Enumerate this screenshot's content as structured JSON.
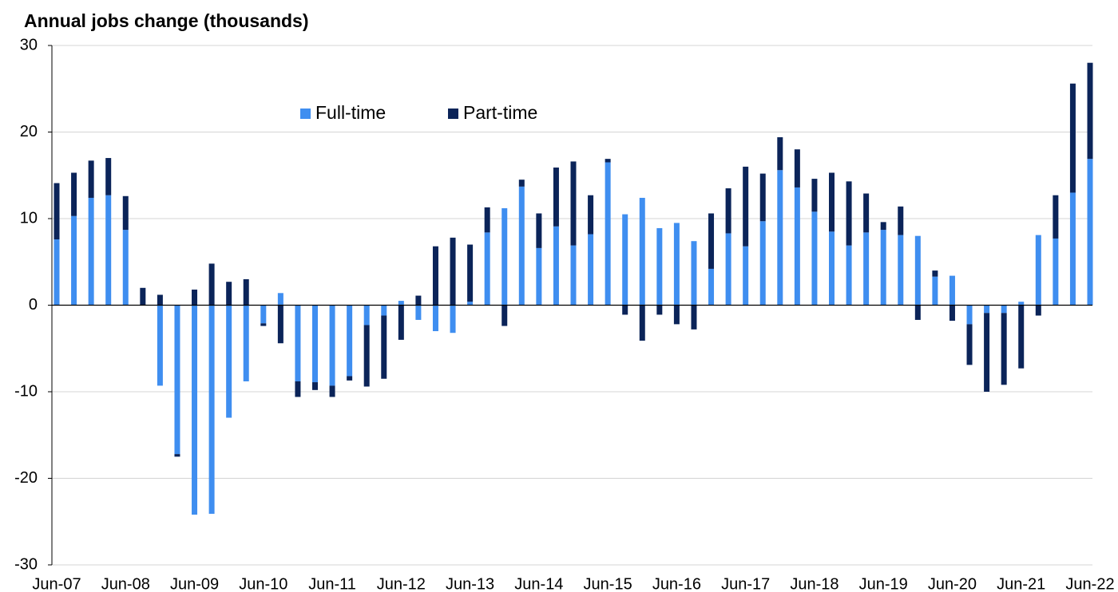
{
  "chart_data": {
    "type": "stacked_bar",
    "title": "Annual jobs change (thousands)",
    "categories": [
      "Jun-07",
      null,
      null,
      null,
      "Jun-08",
      null,
      null,
      null,
      "Jun-09",
      null,
      null,
      null,
      "Jun-10",
      null,
      null,
      null,
      "Jun-11",
      null,
      null,
      null,
      "Jun-12",
      null,
      null,
      null,
      "Jun-13",
      null,
      null,
      null,
      "Jun-14",
      null,
      null,
      null,
      "Jun-15",
      null,
      null,
      null,
      "Jun-16",
      null,
      null,
      null,
      "Jun-17",
      null,
      null,
      null,
      "Jun-18",
      null,
      null,
      null,
      "Jun-19",
      null,
      null,
      null,
      "Jun-20",
      null,
      null,
      null,
      "Jun-21",
      null,
      null,
      null,
      "Jun-22"
    ],
    "series": [
      {
        "name": "Full-time",
        "color": "#3f8ef0",
        "values": [
          7.6,
          10.3,
          12.4,
          12.7,
          8.7,
          0,
          -9.3,
          -17.2,
          -24.2,
          -24.1,
          -13.0,
          -8.8,
          -2.1,
          1.4,
          -8.8,
          -8.9,
          -9.3,
          -8.2,
          -2.3,
          -1.2,
          0.5,
          -1.7,
          -3.0,
          -3.2,
          0.4,
          8.4,
          11.2,
          13.7,
          6.6,
          9.1,
          6.9,
          8.2,
          16.5,
          10.5,
          12.4,
          8.9,
          9.5,
          7.4,
          4.2,
          8.3,
          6.8,
          9.7,
          15.6,
          13.6,
          10.8,
          8.5,
          6.9,
          8.4,
          8.7,
          8.1,
          8.0,
          3.3,
          3.4,
          -2.2,
          -0.9,
          -0.9,
          0.4,
          8.1,
          7.7,
          13.0,
          16.9
        ]
      },
      {
        "name": "Part-time",
        "color": "#0b2459",
        "values": [
          6.5,
          5.0,
          4.3,
          4.3,
          3.9,
          2.0,
          1.2,
          -0.3,
          1.8,
          4.8,
          2.7,
          3.0,
          -0.3,
          -4.4,
          -1.8,
          -0.9,
          -1.3,
          -0.5,
          -7.1,
          -7.3,
          -4.0,
          1.1,
          6.8,
          7.8,
          6.6,
          2.9,
          -2.4,
          0.8,
          4.0,
          6.8,
          9.7,
          4.5,
          0.4,
          -1.1,
          -4.1,
          -1.1,
          -2.2,
          -2.8,
          6.4,
          5.2,
          9.2,
          5.5,
          3.8,
          4.4,
          3.8,
          6.8,
          7.4,
          4.5,
          0.9,
          3.3,
          -1.7,
          0.7,
          -1.8,
          -4.7,
          -9.1,
          -8.3,
          -7.3,
          -1.2,
          5.0,
          12.6,
          11.1
        ]
      }
    ],
    "ylim": [
      -30,
      30
    ],
    "yticks": [
      -30,
      -20,
      -10,
      0,
      10,
      20,
      30
    ],
    "grid": true,
    "legend": "top"
  }
}
